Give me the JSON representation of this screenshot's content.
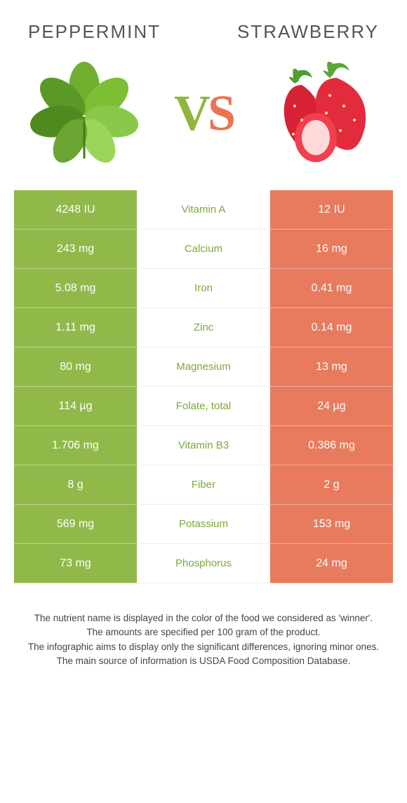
{
  "header": {
    "left_title": "Peppermint",
    "right_title": "Strawberry"
  },
  "vs": {
    "v": "V",
    "s": "S"
  },
  "colors": {
    "left": "#91b94a",
    "right": "#e87b5e",
    "left_text": "#7fa838",
    "right_text": "#d8643f"
  },
  "rows": [
    {
      "left": "4248 IU",
      "label": "Vitamin A",
      "right": "12 IU",
      "winner": "left"
    },
    {
      "left": "243 mg",
      "label": "Calcium",
      "right": "16 mg",
      "winner": "left"
    },
    {
      "left": "5.08 mg",
      "label": "Iron",
      "right": "0.41 mg",
      "winner": "left"
    },
    {
      "left": "1.11 mg",
      "label": "Zinc",
      "right": "0.14 mg",
      "winner": "left"
    },
    {
      "left": "80 mg",
      "label": "Magnesium",
      "right": "13 mg",
      "winner": "left"
    },
    {
      "left": "114 µg",
      "label": "Folate, total",
      "right": "24 µg",
      "winner": "left"
    },
    {
      "left": "1.706 mg",
      "label": "Vitamin B3",
      "right": "0.386 mg",
      "winner": "left"
    },
    {
      "left": "8 g",
      "label": "Fiber",
      "right": "2 g",
      "winner": "left"
    },
    {
      "left": "569 mg",
      "label": "Potassium",
      "right": "153 mg",
      "winner": "left"
    },
    {
      "left": "73 mg",
      "label": "Phosphorus",
      "right": "24 mg",
      "winner": "left"
    }
  ],
  "footnotes": [
    "The nutrient name is displayed in the color of the food we considered as 'winner'.",
    "The amounts are specified per 100 gram of the product.",
    "The infographic aims to display only the significant differences, ignoring minor ones.",
    "The main source of information is USDA Food Composition Database."
  ]
}
